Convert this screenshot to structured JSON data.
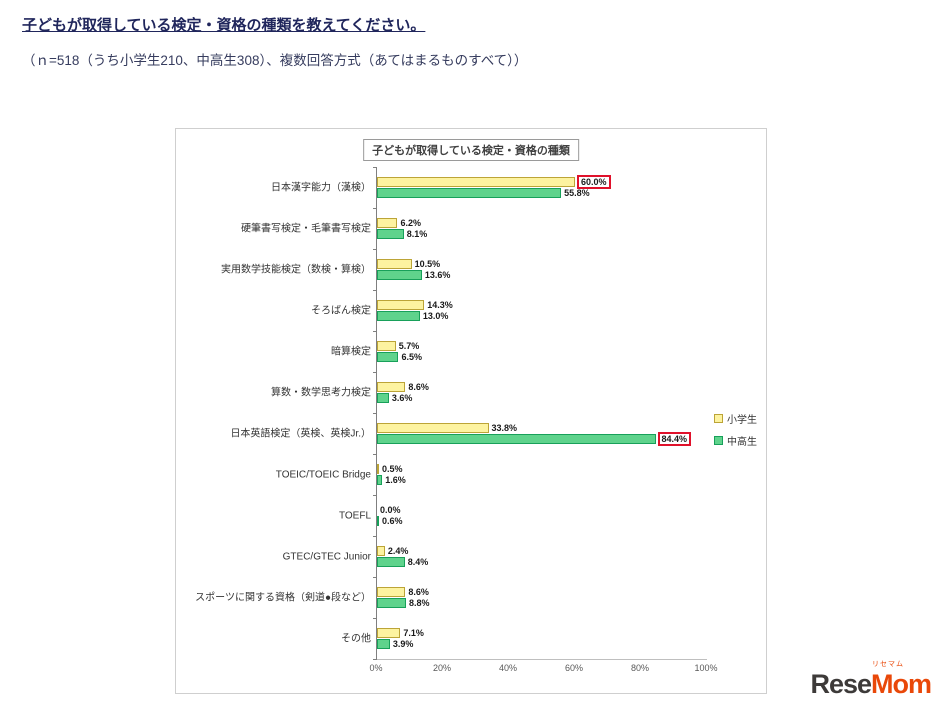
{
  "page": {
    "heading": "子どもが取得している検定・資格の種類を教えてください。",
    "subheading": "（ｎ=518（うち小学生210、中高生308）、複数回答方式（あてはまるものすべて））"
  },
  "chart_data": {
    "type": "bar",
    "orientation": "horizontal",
    "title": "子どもが取得している検定・資格の種類",
    "categories": [
      "日本漢字能力（漢検）",
      "硬筆書写検定・毛筆書写検定",
      "実用数学技能検定（数検・算検）",
      "そろばん検定",
      "暗算検定",
      "算数・数学思考力検定",
      "日本英語検定（英検、英検Jr.）",
      "TOEIC/TOEIC Bridge",
      "TOEFL",
      "GTEC/GTEC Junior",
      "スポーツに関する資格（剣道●段など）",
      "その他"
    ],
    "series": [
      {
        "name": "小学生",
        "fill": "#fdf3a0",
        "border": "#bca437",
        "values": [
          60.0,
          6.2,
          10.5,
          14.3,
          5.7,
          8.6,
          33.8,
          0.5,
          0.0,
          2.4,
          8.6,
          7.1
        ]
      },
      {
        "name": "中高生",
        "fill": "#5fd38c",
        "border": "#18a05a",
        "values": [
          55.8,
          8.1,
          13.6,
          13.0,
          6.5,
          3.6,
          84.4,
          1.6,
          0.6,
          8.4,
          8.8,
          3.9
        ]
      }
    ],
    "highlighted": [
      {
        "series": 0,
        "index": 0
      },
      {
        "series": 1,
        "index": 6
      }
    ],
    "highlight_color": "#e0112b",
    "x_ticks": [
      "0%",
      "20%",
      "40%",
      "60%",
      "80%",
      "100%"
    ],
    "xlim": [
      0,
      100
    ],
    "legend_position": "right"
  },
  "logo": {
    "rese": "Rese",
    "mom": "Mom",
    "ruby": "リセマム"
  }
}
